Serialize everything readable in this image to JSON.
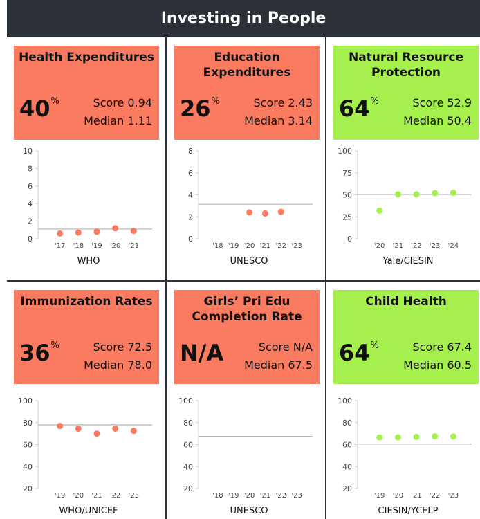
{
  "title": "Investing in People",
  "chart_data": [
    {
      "type": "scatter",
      "title": "Health Expenditures",
      "rank": 40,
      "rank_unit": "%",
      "score_label": "Score",
      "score": 0.94,
      "median_text": "Median",
      "median": 1.11,
      "median_label": "1.11",
      "color": "#fa7b5f",
      "categories": [
        "'17",
        "'18",
        "'19",
        "'20",
        "'21"
      ],
      "values": [
        0.6,
        0.7,
        0.8,
        1.2,
        0.9
      ],
      "ylim": [
        0,
        10
      ],
      "yticks": [
        0,
        2,
        4,
        6,
        8,
        10
      ],
      "source": "WHO"
    },
    {
      "type": "scatter",
      "title": "Education Expenditures",
      "rank": 26,
      "rank_unit": "%",
      "score_label": "Score",
      "score": 2.43,
      "median_text": "Median",
      "median": 3.14,
      "median_label": "3.14",
      "color": "#fa7b5f",
      "categories": [
        "'18",
        "'19",
        "'20",
        "'21",
        "'22",
        "'23"
      ],
      "values": [
        null,
        null,
        2.4,
        2.3,
        2.45,
        null
      ],
      "ylim": [
        0,
        8
      ],
      "yticks": [
        0,
        2,
        4,
        6,
        8
      ],
      "source": "UNESCO"
    },
    {
      "type": "scatter",
      "title": "Natural Resource Protection",
      "rank": 64,
      "rank_unit": "%",
      "score_label": "Score",
      "score": 52.9,
      "median_text": "Median",
      "median": 50.4,
      "median_label": "50.4",
      "color": "#a5f04d",
      "categories": [
        "'20",
        "'21",
        "'22",
        "'23",
        "'24"
      ],
      "values": [
        32,
        50.5,
        50.5,
        52,
        52.5
      ],
      "ylim": [
        0,
        100
      ],
      "yticks": [
        0,
        25,
        50,
        75,
        100
      ],
      "source": "Yale/CIESIN"
    },
    {
      "type": "scatter",
      "title": "Immunization Rates",
      "rank": 36,
      "rank_unit": "%",
      "score_label": "Score",
      "score": 72.5,
      "median_text": "Median",
      "median": 78,
      "median_label": "78.0",
      "color": "#fa7b5f",
      "categories": [
        "'19",
        "'20",
        "'21",
        "'22",
        "'23"
      ],
      "values": [
        77,
        74.5,
        70,
        74.5,
        72.5
      ],
      "ylim": [
        20,
        100
      ],
      "yticks": [
        20,
        40,
        60,
        80,
        100
      ],
      "source": "WHO/UNICEF"
    },
    {
      "type": "scatter",
      "title": "Girls’ Pri Edu Completion Rate",
      "rank": "N/A",
      "score_label": "Score",
      "score": "N/A",
      "median_text": "Median",
      "median": 67.5,
      "median_label": "67.5",
      "color": "#fa7b5f",
      "categories": [
        "'18",
        "'19",
        "'20",
        "'21",
        "'22",
        "'23"
      ],
      "values": [
        null,
        null,
        null,
        null,
        null,
        null
      ],
      "ylim": [
        20,
        100
      ],
      "yticks": [
        20,
        40,
        60,
        80,
        100
      ],
      "source": "UNESCO"
    },
    {
      "type": "scatter",
      "title": "Child Health",
      "rank": 64,
      "rank_unit": "%",
      "score_label": "Score",
      "score": 67.4,
      "median_text": "Median",
      "median": 60.5,
      "median_label": "60.5",
      "color": "#a5f04d",
      "categories": [
        "'19",
        "'20",
        "'21",
        "'22",
        "'23"
      ],
      "values": [
        66.5,
        66.5,
        67,
        67.5,
        67.4
      ],
      "ylim": [
        20,
        100
      ],
      "yticks": [
        20,
        40,
        60,
        80,
        100
      ],
      "source": "CIESIN/YCELP"
    }
  ]
}
